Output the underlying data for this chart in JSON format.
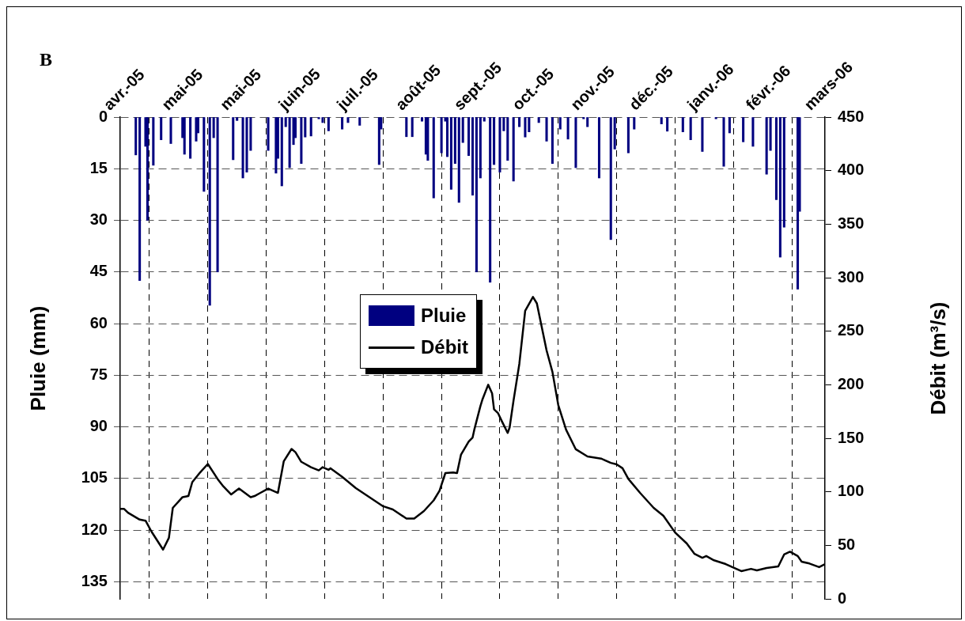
{
  "chart_data": {
    "type": "bar",
    "title": "B",
    "ylabel": "Pluie (mm)",
    "y2label": "Débit (m³/s)",
    "xlim": [
      "2005-04-01",
      "2006-03-29"
    ],
    "xticks": [
      {
        "value": "2005-04-01",
        "label": "avr.-05"
      },
      {
        "value": "2005-05-01",
        "label": "mai-05"
      },
      {
        "value": "2005-05-31",
        "label": "mai-05"
      },
      {
        "value": "2005-06-30",
        "label": "juin-05"
      },
      {
        "value": "2005-07-30",
        "label": "juil.-05"
      },
      {
        "value": "2005-08-29",
        "label": "août-05"
      },
      {
        "value": "2005-09-28",
        "label": "sept.-05"
      },
      {
        "value": "2005-10-28",
        "label": "oct.-05"
      },
      {
        "value": "2005-11-27",
        "label": "nov.-05"
      },
      {
        "value": "2005-12-27",
        "label": "déc.-05"
      },
      {
        "value": "2006-01-26",
        "label": "janv.-06"
      },
      {
        "value": "2006-02-25",
        "label": "févr.-06"
      },
      {
        "value": "2006-03-27",
        "label": "mars-06"
      }
    ],
    "ylim": [
      140,
      0
    ],
    "yticks": [
      0,
      15,
      30,
      45,
      60,
      75,
      90,
      105,
      120,
      135
    ],
    "y2lim": [
      0,
      450
    ],
    "y2ticks": [
      0,
      50,
      100,
      150,
      200,
      250,
      300,
      350,
      400,
      450
    ],
    "grid": true,
    "legend": "center",
    "marker": "none",
    "series": [
      {
        "name": "Pluie",
        "color": "#000080",
        "x": [
          "2005-04-09",
          "2005-04-11",
          "2005-04-14",
          "2005-04-15",
          "2005-04-18",
          "2005-04-22",
          "2005-04-27",
          "2005-05-03",
          "2005-05-04",
          "2005-05-07",
          "2005-05-10",
          "2005-05-11",
          "2005-05-14",
          "2005-05-17",
          "2005-05-19",
          "2005-05-21",
          "2005-05-29",
          "2005-05-31",
          "2005-06-03",
          "2005-06-05",
          "2005-06-07",
          "2005-06-16",
          "2005-06-20",
          "2005-06-21",
          "2005-06-23",
          "2005-06-25",
          "2005-06-27",
          "2005-06-29",
          "2005-06-30",
          "2005-07-03",
          "2005-07-05",
          "2005-07-08",
          "2005-07-12",
          "2005-07-14",
          "2005-07-17",
          "2005-07-24",
          "2005-07-27",
          "2005-08-02",
          "2005-08-12",
          "2005-08-13",
          "2005-08-26",
          "2005-08-29",
          "2005-09-03",
          "2005-09-05",
          "2005-09-06",
          "2005-09-09",
          "2005-09-13",
          "2005-09-15",
          "2005-09-16",
          "2005-09-18",
          "2005-09-20",
          "2005-09-22",
          "2005-09-24",
          "2005-09-27",
          "2005-09-29",
          "2005-10-01",
          "2005-10-03",
          "2005-10-05",
          "2005-10-08",
          "2005-10-10",
          "2005-10-13",
          "2005-10-15",
          "2005-10-17",
          "2005-10-20",
          "2005-10-23",
          "2005-10-26",
          "2005-10-28",
          "2005-11-02",
          "2005-11-06",
          "2005-11-09",
          "2005-11-13",
          "2005-11-17",
          "2005-11-21",
          "2005-11-25",
          "2005-11-27",
          "2005-12-03",
          "2005-12-09",
          "2005-12-11",
          "2005-12-18",
          "2005-12-21",
          "2006-01-04",
          "2006-01-07",
          "2006-01-15",
          "2006-01-19",
          "2006-01-25",
          "2006-02-01",
          "2006-02-05",
          "2006-02-08",
          "2006-02-15",
          "2006-02-20",
          "2006-02-27",
          "2006-03-01",
          "2006-03-04",
          "2006-03-06",
          "2006-03-08",
          "2006-03-15",
          "2006-03-16"
        ],
        "values": [
          11,
          47.5,
          8.5,
          30,
          14,
          6.6,
          7.7,
          6,
          10.8,
          12,
          7,
          4.6,
          21.6,
          54.7,
          6,
          45,
          12.4,
          1,
          17.7,
          16,
          9.7,
          9.7,
          16.3,
          12,
          20,
          2.8,
          14.7,
          8,
          6,
          13.5,
          5.8,
          5.5,
          0.5,
          1.6,
          4,
          3.5,
          1.6,
          2.4,
          13.8,
          3.5,
          5.7,
          5.7,
          1.2,
          10.8,
          12.6,
          23.5,
          10.4,
          1.2,
          11.5,
          21,
          13.5,
          24.8,
          7.4,
          11.2,
          22.7,
          45,
          17.7,
          1.2,
          48,
          13.8,
          16,
          4,
          12.6,
          18.6,
          2.8,
          5.8,
          4.3,
          1.6,
          7,
          13.5,
          3.5,
          6.4,
          14.7,
          0.5,
          2.8,
          17.7,
          35.6,
          9.3,
          10.4,
          3.5,
          2,
          4.1,
          4.3,
          6.6,
          10,
          0.5,
          14.3,
          4.6,
          7.2,
          8.5,
          16.6,
          9.7,
          24,
          40.7,
          32,
          50,
          27.4
        ]
      },
      {
        "name": "Débit",
        "type": "line",
        "axis": "y2",
        "color": "#000000",
        "x": [
          "2005-04-01",
          "2005-04-03",
          "2005-04-05",
          "2005-04-11",
          "2005-04-14",
          "2005-04-17",
          "2005-04-23",
          "2005-04-26",
          "2005-04-28",
          "2005-05-01",
          "2005-05-03",
          "2005-05-06",
          "2005-05-08",
          "2005-05-12",
          "2005-05-16",
          "2005-05-21",
          "2005-05-24",
          "2005-05-28",
          "2005-06-01",
          "2005-06-07",
          "2005-06-09",
          "2005-06-12",
          "2005-06-16",
          "2005-06-21",
          "2005-06-24",
          "2005-06-28",
          "2005-06-30",
          "2005-07-03",
          "2005-07-08",
          "2005-07-12",
          "2005-07-14",
          "2005-07-17",
          "2005-07-18",
          "2005-07-24",
          "2005-07-31",
          "2005-08-14",
          "2005-08-19",
          "2005-08-26",
          "2005-08-30",
          "2005-09-04",
          "2005-09-09",
          "2005-09-12",
          "2005-09-15",
          "2005-09-19",
          "2005-09-21",
          "2005-09-23",
          "2005-09-27",
          "2005-09-29",
          "2005-09-30",
          "2005-10-03",
          "2005-10-04",
          "2005-10-07",
          "2005-10-09",
          "2005-10-10",
          "2005-10-12",
          "2005-10-14",
          "2005-10-17",
          "2005-10-18",
          "2005-10-20",
          "2005-10-23",
          "2005-10-26",
          "2005-10-30",
          "2005-11-01",
          "2005-11-06",
          "2005-11-09",
          "2005-11-12",
          "2005-11-16",
          "2005-11-21",
          "2005-11-27",
          "2005-12-04",
          "2005-12-09",
          "2005-12-12",
          "2005-12-15",
          "2005-12-18",
          "2005-12-24",
          "2005-12-31",
          "2006-01-05",
          "2006-01-11",
          "2006-01-17",
          "2006-01-21",
          "2006-01-25",
          "2006-01-27",
          "2006-01-31",
          "2006-02-06",
          "2006-02-14",
          "2006-02-19",
          "2006-02-22",
          "2006-02-27",
          "2006-03-05",
          "2006-03-08",
          "2006-03-11",
          "2006-03-15",
          "2006-03-17",
          "2006-03-21",
          "2006-03-26",
          "2006-03-29"
        ],
        "values": [
          84,
          84,
          80.5,
          74,
          73,
          63,
          46,
          57,
          85,
          91,
          95,
          96,
          109,
          118,
          126,
          112,
          105,
          97.5,
          103,
          95,
          96,
          99,
          103,
          99,
          128.5,
          140,
          137,
          128,
          123,
          120,
          123,
          120.5,
          122,
          114,
          103.5,
          86.5,
          83.5,
          75,
          75,
          82,
          92,
          101,
          117.5,
          118,
          117.5,
          134.5,
          147,
          150.7,
          159,
          180,
          186,
          200,
          192,
          177,
          173.6,
          166,
          155,
          160,
          185,
          219.5,
          269,
          282,
          276,
          232,
          212,
          181,
          158,
          139.7,
          133,
          131,
          127,
          125.6,
          122,
          112,
          99,
          85,
          77.6,
          62,
          51.7,
          42,
          38.4,
          40,
          36,
          32.5,
          25.9,
          28,
          26.6,
          28.8,
          30.3,
          41.4,
          44,
          40,
          34.7,
          33,
          29.6,
          32.5
        ]
      }
    ]
  }
}
